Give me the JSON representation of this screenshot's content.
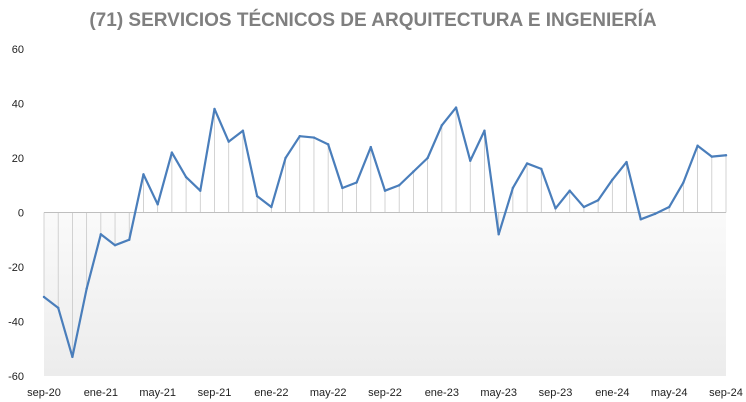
{
  "chart_data": {
    "type": "line",
    "title": "(71) SERVICIOS TÉCNICOS DE ARQUITECTURA E INGENIERÍA",
    "xlabel": "",
    "ylabel": "",
    "ylim": [
      -60,
      60
    ],
    "yticks": [
      -60,
      -40,
      -20,
      0,
      20,
      40,
      60
    ],
    "xtick_labels": [
      "sep-20",
      "ene-21",
      "may-21",
      "sep-21",
      "ene-22",
      "may-22",
      "sep-22",
      "ene-23",
      "may-23",
      "sep-23",
      "ene-24",
      "may-24",
      "sep-24"
    ],
    "grid": false,
    "legend": "none",
    "colors": {
      "line": "#4a7ebb",
      "drop_lines": "#c8c8c8",
      "axis": "#bfbfbf"
    },
    "series": [
      {
        "x": [
          "sep-20",
          "oct-20",
          "nov-20",
          "dic-20",
          "ene-21",
          "feb-21",
          "mar-21",
          "abr-21",
          "may-21",
          "jun-21",
          "jul-21",
          "ago-21",
          "sep-21",
          "oct-21",
          "nov-21",
          "dic-21",
          "ene-22",
          "feb-22",
          "mar-22",
          "abr-22",
          "may-22",
          "jun-22",
          "jul-22",
          "ago-22",
          "sep-22",
          "oct-22",
          "nov-22",
          "dic-22",
          "ene-23",
          "feb-23",
          "mar-23",
          "abr-23",
          "may-23",
          "jun-23",
          "jul-23",
          "ago-23",
          "sep-23",
          "oct-23",
          "nov-23",
          "dic-23",
          "ene-24",
          "feb-24",
          "mar-24",
          "abr-24",
          "may-24",
          "jun-24",
          "jul-24",
          "ago-24",
          "sep-24"
        ],
        "values": [
          -31,
          -35,
          -53,
          -28,
          -8,
          -12,
          -10,
          14,
          3,
          22,
          13,
          8,
          38,
          26,
          30,
          6,
          2,
          20,
          28,
          27.5,
          25,
          9,
          11,
          24,
          8,
          10,
          15,
          20,
          32,
          38.5,
          19,
          30,
          -8,
          9,
          18,
          16,
          1.5,
          8,
          2,
          4.5,
          12,
          18.5,
          -2.5,
          -0.5,
          2,
          11,
          24.5,
          20.5,
          21
        ]
      }
    ]
  }
}
